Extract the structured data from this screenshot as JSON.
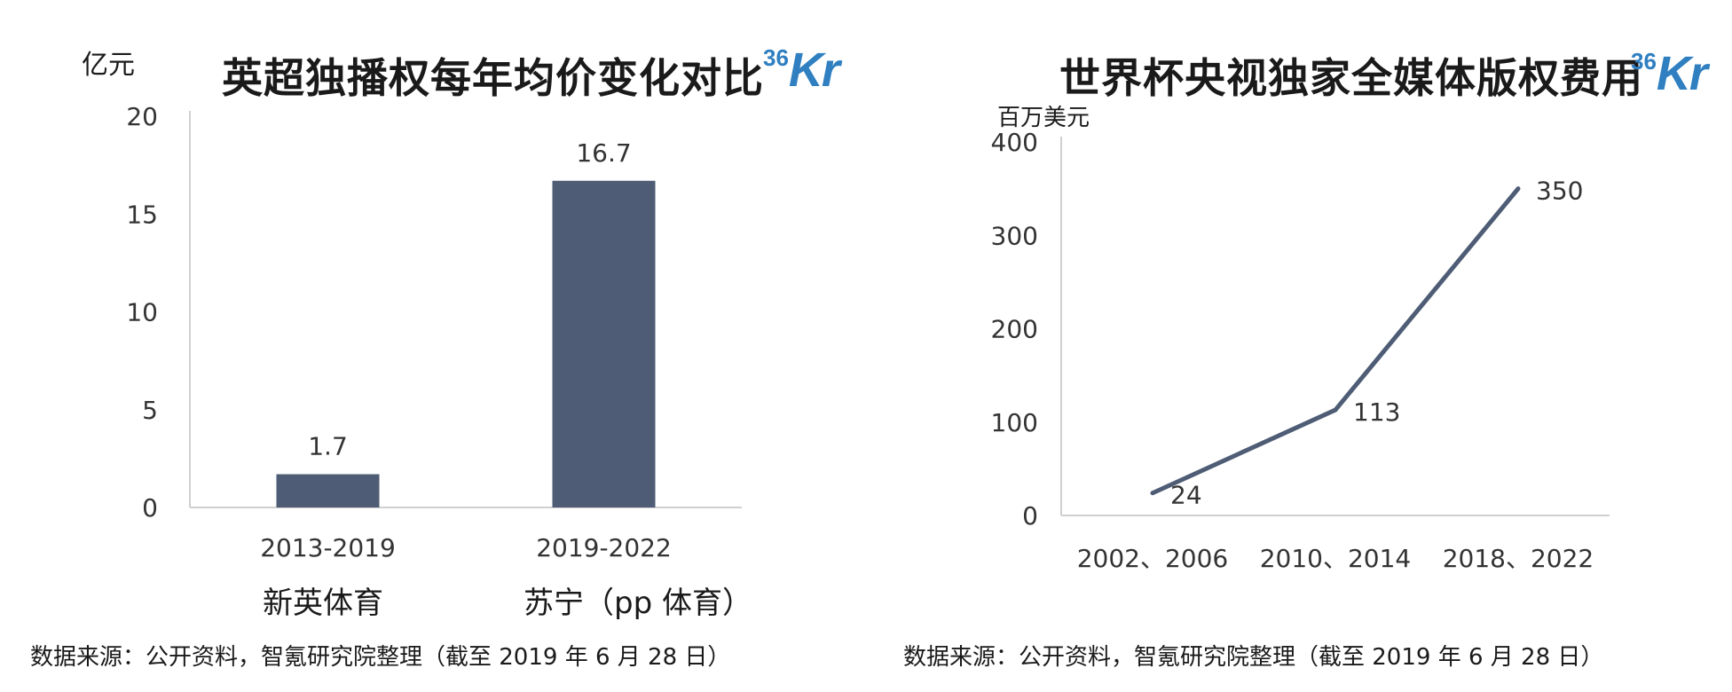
{
  "left": {
    "unit": "亿元",
    "title": "英超独播权每年均价变化对比",
    "logo_sup": "36",
    "logo_main": "Kr",
    "source": "数据来源：公开资料，智氪研究院整理（截至 2019 年 6 月 28 日）",
    "sub_labels": [
      "新英体育",
      "苏宁（pp 体育）"
    ]
  },
  "right": {
    "unit": "百万美元",
    "title": "世界杯央视独家全媒体版权费用",
    "logo_sup": "36",
    "logo_main": "Kr",
    "source": "数据来源：公开资料，智氪研究院整理（截至 2019 年 6 月 28 日）"
  },
  "chart_data": [
    {
      "type": "bar",
      "title": "英超独播权每年均价变化对比",
      "ylabel": "亿元",
      "categories": [
        "2013-2019",
        "2019-2022"
      ],
      "values": [
        1.7,
        16.7
      ],
      "data_labels": [
        "1.7",
        "16.7"
      ],
      "yticks": [
        0,
        5,
        10,
        15,
        20
      ],
      "ylim": [
        0,
        20
      ],
      "grid": false,
      "bar_color": "#4e5d75"
    },
    {
      "type": "line",
      "title": "世界杯央视独家全媒体版权费用",
      "ylabel": "百万美元",
      "categories": [
        "2002、2006",
        "2010、2014",
        "2018、2022"
      ],
      "values": [
        24,
        113,
        350
      ],
      "data_labels": [
        "24",
        "113",
        "350"
      ],
      "yticks": [
        0,
        100,
        200,
        300,
        400
      ],
      "ylim": [
        0,
        400
      ],
      "grid": false,
      "line_color": "#4e5d75"
    }
  ]
}
